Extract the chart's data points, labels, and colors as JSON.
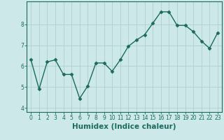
{
  "x": [
    0,
    1,
    2,
    3,
    4,
    5,
    6,
    7,
    8,
    9,
    10,
    11,
    12,
    13,
    14,
    15,
    16,
    17,
    18,
    19,
    20,
    21,
    22,
    23
  ],
  "y": [
    6.3,
    4.9,
    6.2,
    6.3,
    5.6,
    5.6,
    4.45,
    5.05,
    6.15,
    6.15,
    5.75,
    6.3,
    6.95,
    7.25,
    7.5,
    8.05,
    8.6,
    8.6,
    7.95,
    7.95,
    7.65,
    7.2,
    6.85,
    7.6
  ],
  "line_color": "#1a6b5e",
  "marker": "D",
  "marker_size": 2.5,
  "bg_color": "#cce8e8",
  "grid_color": "#b0cece",
  "xlabel": "Humidex (Indice chaleur)",
  "xlabel_fontsize": 7.5,
  "xlim": [
    -0.5,
    23.5
  ],
  "ylim": [
    3.8,
    9.1
  ],
  "yticks": [
    4,
    5,
    6,
    7,
    8
  ],
  "xticks": [
    0,
    1,
    2,
    3,
    4,
    5,
    6,
    7,
    8,
    9,
    10,
    11,
    12,
    13,
    14,
    15,
    16,
    17,
    18,
    19,
    20,
    21,
    22,
    23
  ],
  "tick_fontsize": 5.5,
  "line_width": 1.0
}
